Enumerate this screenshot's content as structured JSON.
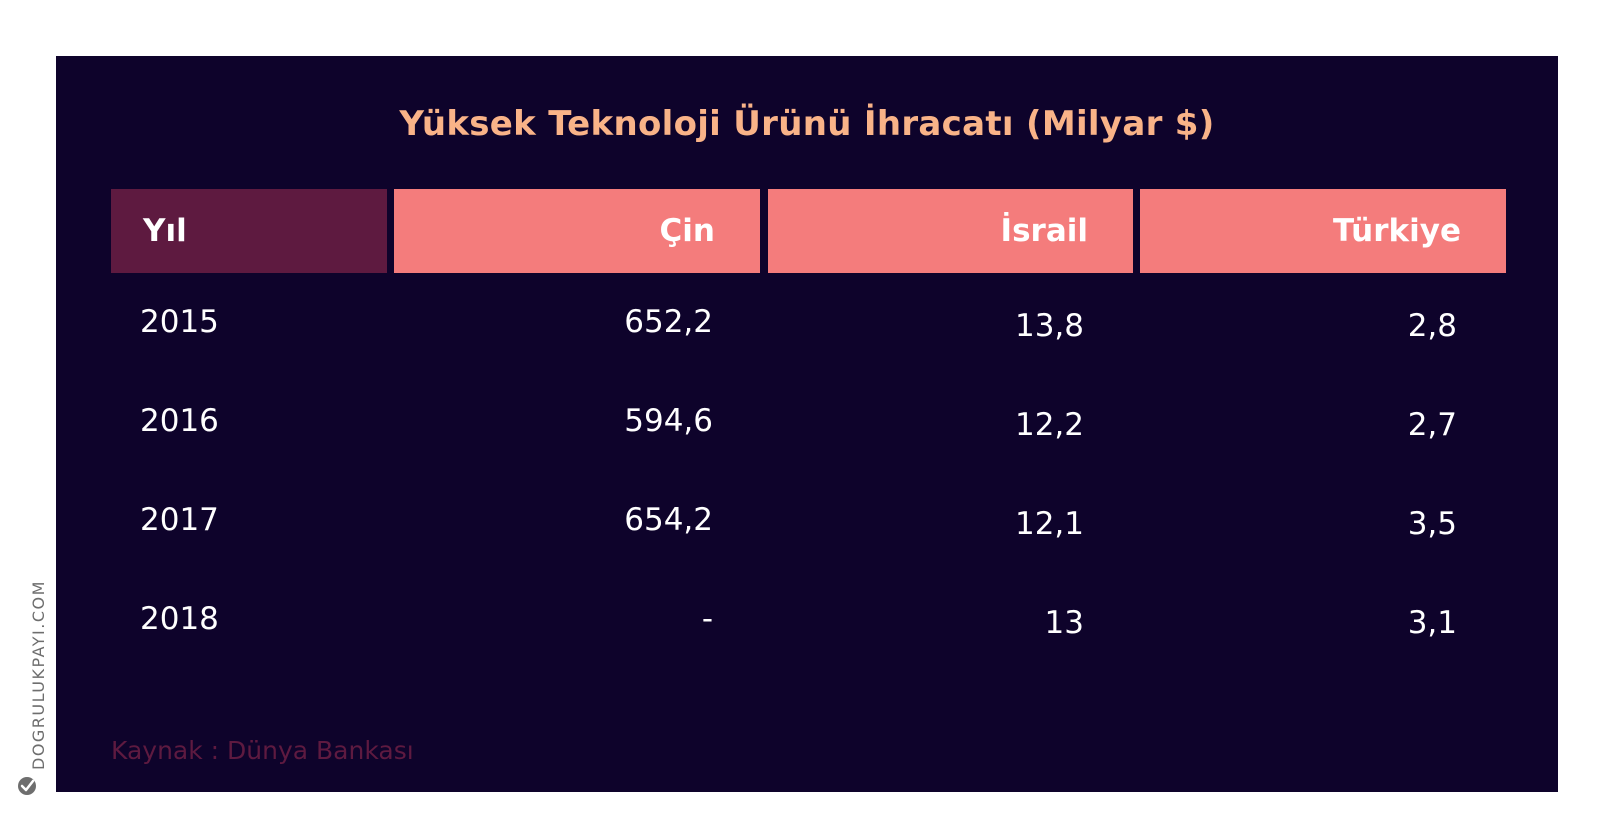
{
  "chart_data": {
    "type": "table",
    "title": "Yüksek Teknoloji Ürünü İhracatı (Milyar $)",
    "columns": [
      "Yıl",
      "Çin",
      "İsrail",
      "Türkiye"
    ],
    "rows": [
      {
        "year": "2015",
        "cin": "652,2",
        "israil": "13,8",
        "turkiye": "2,8"
      },
      {
        "year": "2016",
        "cin": "594,6",
        "israil": "12,2",
        "turkiye": "2,7"
      },
      {
        "year": "2017",
        "cin": "654,2",
        "israil": "12,1",
        "turkiye": "3,5"
      },
      {
        "year": "2018",
        "cin": "-",
        "israil": "13",
        "turkiye": "3,1"
      }
    ],
    "source": "Kaynak : Dünya Bankası"
  },
  "brand": {
    "watermark": "DOGRULUKPAYI.COM",
    "icon": "check-circle-icon"
  },
  "colors": {
    "background": "#0e032b",
    "title": "#f9b388",
    "header_year": "#5e1a40",
    "header_country": "#f47c7c",
    "text": "#ffffff",
    "source": "#5e1a40"
  }
}
